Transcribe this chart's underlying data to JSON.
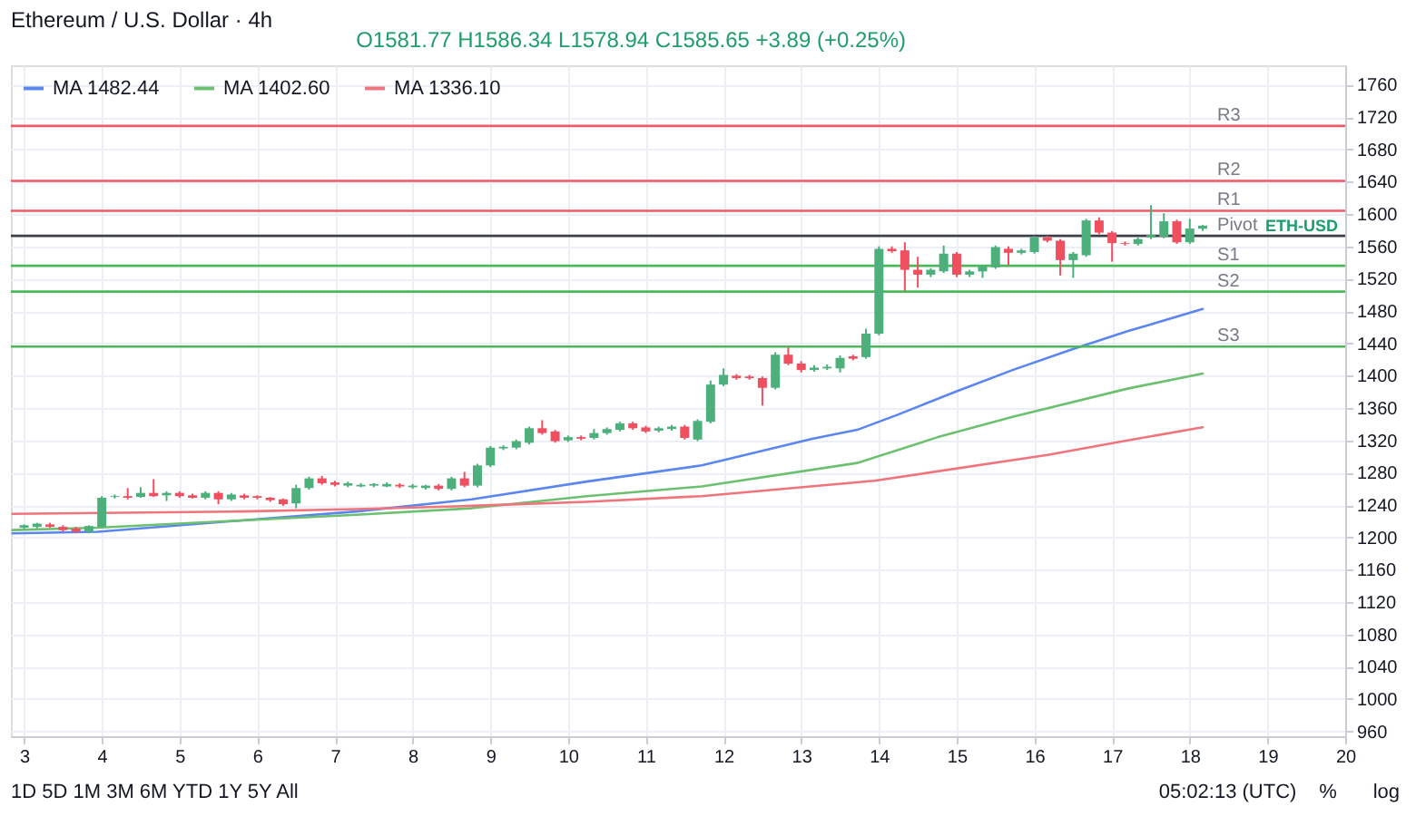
{
  "chart_data": {
    "type": "candlestick",
    "title": "Ethereum / U.S. Dollar · 4h",
    "x": [
      3,
      3.1667,
      3.3333,
      3.5,
      3.6667,
      3.8333,
      4,
      4.1667,
      4.3333,
      4.5,
      4.6667,
      4.8333,
      5,
      5.1667,
      5.3333,
      5.5,
      5.6667,
      5.8333,
      6,
      6.1667,
      6.3333,
      6.5,
      6.6667,
      6.8333,
      7,
      7.1667,
      7.3333,
      7.5,
      7.6667,
      7.8333,
      8,
      8.1667,
      8.3333,
      8.5,
      8.6667,
      8.8333,
      9,
      9.1667,
      9.3333,
      9.5,
      9.6667,
      9.8333,
      10,
      10.1667,
      10.3333,
      10.5,
      10.6667,
      10.8333,
      11,
      11.1667,
      11.3333,
      11.5,
      11.6667,
      11.8333,
      12,
      12.1667,
      12.3333,
      12.5,
      12.6667,
      12.8333,
      13,
      13.1667,
      13.3333,
      13.5,
      13.6667,
      13.8333,
      14,
      14.1667,
      14.3333,
      14.5,
      14.6667,
      14.8333,
      15,
      15.1667,
      15.3333,
      15.5,
      15.6667,
      15.8333,
      16,
      16.1667,
      16.3333,
      16.5,
      16.6667,
      16.8333,
      17,
      17.1667,
      17.3333,
      17.5,
      17.6667,
      17.8333,
      18,
      18.1667
    ],
    "ohlc": [
      [
        1212,
        1216,
        1210,
        1215
      ],
      [
        1213,
        1218,
        1211,
        1217
      ],
      [
        1216,
        1218,
        1212,
        1213
      ],
      [
        1213,
        1215,
        1207,
        1209
      ],
      [
        1211,
        1213,
        1205,
        1207
      ],
      [
        1207,
        1215,
        1205,
        1214
      ],
      [
        1213,
        1251,
        1212,
        1249
      ],
      [
        1250,
        1253,
        1248,
        1251
      ],
      [
        1251,
        1261,
        1247,
        1249
      ],
      [
        1250,
        1262,
        1249,
        1255
      ],
      [
        1255,
        1272,
        1250,
        1251
      ],
      [
        1252,
        1257,
        1245,
        1255
      ],
      [
        1255,
        1257,
        1249,
        1251
      ],
      [
        1252,
        1254,
        1248,
        1249
      ],
      [
        1249,
        1257,
        1247,
        1255
      ],
      [
        1255,
        1257,
        1241,
        1247
      ],
      [
        1247,
        1255,
        1245,
        1253
      ],
      [
        1252,
        1254,
        1247,
        1249
      ],
      [
        1251,
        1252,
        1247,
        1249
      ],
      [
        1249,
        1250,
        1244,
        1246
      ],
      [
        1247,
        1248,
        1239,
        1241
      ],
      [
        1242,
        1265,
        1236,
        1261
      ],
      [
        1261,
        1275,
        1259,
        1273
      ],
      [
        1273,
        1276,
        1265,
        1267
      ],
      [
        1268,
        1270,
        1263,
        1265
      ],
      [
        1264,
        1269,
        1262,
        1267
      ],
      [
        1263,
        1267,
        1262,
        1265
      ],
      [
        1264,
        1267,
        1262,
        1266
      ],
      [
        1263,
        1268,
        1262,
        1266
      ],
      [
        1265,
        1267,
        1261,
        1263
      ],
      [
        1262,
        1266,
        1260,
        1264
      ],
      [
        1261,
        1265,
        1259,
        1264
      ],
      [
        1264,
        1266,
        1258,
        1260
      ],
      [
        1260,
        1275,
        1258,
        1273
      ],
      [
        1273,
        1281,
        1262,
        1264
      ],
      [
        1264,
        1291,
        1262,
        1289
      ],
      [
        1289,
        1313,
        1287,
        1311
      ],
      [
        1310,
        1314,
        1308,
        1312
      ],
      [
        1311,
        1321,
        1309,
        1319
      ],
      [
        1317,
        1337,
        1315,
        1335
      ],
      [
        1335,
        1345,
        1327,
        1329
      ],
      [
        1331,
        1333,
        1317,
        1319
      ],
      [
        1320,
        1326,
        1318,
        1324
      ],
      [
        1324,
        1326,
        1320,
        1322
      ],
      [
        1323,
        1334,
        1321,
        1329
      ],
      [
        1329,
        1336,
        1327,
        1334
      ],
      [
        1333,
        1343,
        1331,
        1341
      ],
      [
        1341,
        1343,
        1333,
        1335
      ],
      [
        1336,
        1338,
        1329,
        1331
      ],
      [
        1332,
        1337,
        1330,
        1335
      ],
      [
        1334,
        1339,
        1332,
        1337
      ],
      [
        1337,
        1339,
        1321,
        1323
      ],
      [
        1321,
        1346,
        1319,
        1344
      ],
      [
        1343,
        1394,
        1341,
        1389
      ],
      [
        1389,
        1409,
        1387,
        1401
      ],
      [
        1400,
        1402,
        1395,
        1397
      ],
      [
        1399,
        1401,
        1395,
        1397
      ],
      [
        1397,
        1399,
        1363,
        1385
      ],
      [
        1385,
        1429,
        1383,
        1426
      ],
      [
        1426,
        1435,
        1413,
        1415
      ],
      [
        1415,
        1418,
        1404,
        1407
      ],
      [
        1407,
        1413,
        1405,
        1410
      ],
      [
        1409,
        1414,
        1407,
        1411
      ],
      [
        1409,
        1425,
        1404,
        1422
      ],
      [
        1424,
        1426,
        1419,
        1421
      ],
      [
        1423,
        1458,
        1421,
        1452
      ],
      [
        1452,
        1560,
        1450,
        1557
      ],
      [
        1557,
        1560,
        1552,
        1554
      ],
      [
        1555,
        1565,
        1505,
        1531
      ],
      [
        1531,
        1547,
        1509,
        1525
      ],
      [
        1525,
        1533,
        1522,
        1531
      ],
      [
        1529,
        1561,
        1527,
        1551
      ],
      [
        1551,
        1553,
        1522,
        1525
      ],
      [
        1525,
        1531,
        1522,
        1529
      ],
      [
        1529,
        1537,
        1521,
        1535
      ],
      [
        1534,
        1561,
        1532,
        1559
      ],
      [
        1557,
        1560,
        1537,
        1552
      ],
      [
        1552,
        1557,
        1550,
        1555
      ],
      [
        1553,
        1573,
        1551,
        1571
      ],
      [
        1571,
        1573,
        1565,
        1567
      ],
      [
        1567,
        1569,
        1524,
        1543
      ],
      [
        1543,
        1553,
        1521,
        1551
      ],
      [
        1549,
        1594,
        1547,
        1592
      ],
      [
        1592,
        1596,
        1575,
        1577
      ],
      [
        1577,
        1579,
        1541,
        1564
      ],
      [
        1564,
        1566,
        1561,
        1563
      ],
      [
        1563,
        1571,
        1561,
        1569
      ],
      [
        1571,
        1611,
        1569,
        1574
      ],
      [
        1572,
        1601,
        1570,
        1591
      ],
      [
        1591,
        1593,
        1563,
        1565
      ],
      [
        1565,
        1594,
        1563,
        1582
      ],
      [
        1581.77,
        1586.34,
        1578.94,
        1585.65
      ]
    ],
    "colors": [
      "#4caf7c",
      "#4caf7c",
      "#ef4f5f",
      "#ef4f5f",
      "#ef4f5f",
      "#4caf7c",
      "#4caf7c",
      "#4caf7c",
      "#ef4f5f",
      "#4caf7c",
      "#ef4f5f",
      "#4caf7c",
      "#ef4f5f",
      "#ef4f5f",
      "#4caf7c",
      "#ef4f5f",
      "#4caf7c",
      "#ef4f5f",
      "#ef4f5f",
      "#ef4f5f",
      "#ef4f5f",
      "#4caf7c",
      "#4caf7c",
      "#ef4f5f",
      "#ef4f5f",
      "#4caf7c",
      "#4caf7c",
      "#4caf7c",
      "#4caf7c",
      "#ef4f5f",
      "#4caf7c",
      "#4caf7c",
      "#ef4f5f",
      "#4caf7c",
      "#ef4f5f",
      "#4caf7c",
      "#4caf7c",
      "#4caf7c",
      "#4caf7c",
      "#4caf7c",
      "#ef4f5f",
      "#ef4f5f",
      "#4caf7c",
      "#ef4f5f",
      "#4caf7c",
      "#4caf7c",
      "#4caf7c",
      "#ef4f5f",
      "#ef4f5f",
      "#4caf7c",
      "#4caf7c",
      "#ef4f5f",
      "#4caf7c",
      "#4caf7c",
      "#4caf7c",
      "#ef4f5f",
      "#ef4f5f",
      "#ef4f5f",
      "#4caf7c",
      "#ef4f5f",
      "#ef4f5f",
      "#4caf7c",
      "#4caf7c",
      "#4caf7c",
      "#ef4f5f",
      "#4caf7c",
      "#4caf7c",
      "#ef4f5f",
      "#ef4f5f",
      "#ef4f5f",
      "#4caf7c",
      "#4caf7c",
      "#ef4f5f",
      "#4caf7c",
      "#4caf7c",
      "#4caf7c",
      "#ef4f5f",
      "#4caf7c",
      "#4caf7c",
      "#ef4f5f",
      "#ef4f5f",
      "#4caf7c",
      "#4caf7c",
      "#ef4f5f",
      "#ef4f5f",
      "#ef4f5f",
      "#4caf7c",
      "#4caf7c",
      "#4caf7c",
      "#ef4f5f",
      "#4caf7c",
      "#4caf7c"
    ],
    "series": [
      {
        "name": "MA 1482.44",
        "type": "line",
        "color": "#5b86ef",
        "x": [
          2.85,
          3.95,
          5.8,
          7.28,
          8.76,
          10.24,
          11.72,
          13.14,
          13.72,
          14.25,
          14.98,
          15.72,
          16.47,
          17.2,
          18.1667
        ],
        "values": [
          1205,
          1207,
          1221,
          1232,
          1247,
          1269,
          1289,
          1322,
          1333,
          1352,
          1380,
          1407,
          1432,
          1455,
          1482.44
        ]
      },
      {
        "name": "MA 1402.60",
        "type": "line",
        "color": "#6cc070",
        "x": [
          2.85,
          3.95,
          5.8,
          7.28,
          8.76,
          10.24,
          11.72,
          13.72,
          14.76,
          15.72,
          17.2,
          18.1667
        ],
        "values": [
          1209,
          1212,
          1221,
          1228,
          1236,
          1251,
          1263,
          1292,
          1324,
          1349,
          1384,
          1402.6
        ]
      },
      {
        "name": "MA 1336.10",
        "type": "line",
        "color": "#f0747c",
        "x": [
          2.85,
          5.8,
          7.28,
          8.76,
          10.24,
          11.72,
          13.94,
          16.17,
          17.2,
          18.1667
        ],
        "values": [
          1229,
          1232,
          1235,
          1239,
          1244,
          1251,
          1270,
          1302,
          1320,
          1336.1
        ]
      }
    ],
    "ref_lines": [
      {
        "axis": "y",
        "value": 1709,
        "label": "R3",
        "color": "#ef5a66"
      },
      {
        "axis": "y",
        "value": 1641,
        "label": "R2",
        "color": "#ef5a66"
      },
      {
        "axis": "y",
        "value": 1604,
        "label": "R1",
        "color": "#ef5a66"
      },
      {
        "axis": "y",
        "value": 1573,
        "label": "Pivot",
        "color": "#3c3f48"
      },
      {
        "axis": "y",
        "value": 1536,
        "label": "S1",
        "color": "#4cb85a"
      },
      {
        "axis": "y",
        "value": 1504,
        "label": "S2",
        "color": "#4cb85a"
      },
      {
        "axis": "y",
        "value": 1436,
        "label": "S3",
        "color": "#4cb85a"
      }
    ],
    "annotations": [
      "O1581.77 H1586.34 L1578.94 C1585.65 +3.89 (+0.25%)",
      "ETH-USD",
      "1D 5D 1M 3M 6M YTD 1Y 5Y All",
      "05:02:13 (UTC)",
      "%",
      "log"
    ],
    "xlim": [
      2.83,
      20
    ],
    "xticks": [
      3,
      4,
      5,
      6,
      7,
      8,
      9,
      10,
      11,
      12,
      13,
      14,
      15,
      16,
      17,
      18,
      19,
      20
    ],
    "ylim": [
      954,
      1784
    ],
    "yticks": [
      960,
      1000,
      1040,
      1080,
      1120,
      1160,
      1200,
      1240,
      1280,
      1320,
      1360,
      1400,
      1440,
      1480,
      1520,
      1560,
      1600,
      1640,
      1680,
      1720,
      1760
    ],
    "grid": true,
    "legend": "top left"
  }
}
